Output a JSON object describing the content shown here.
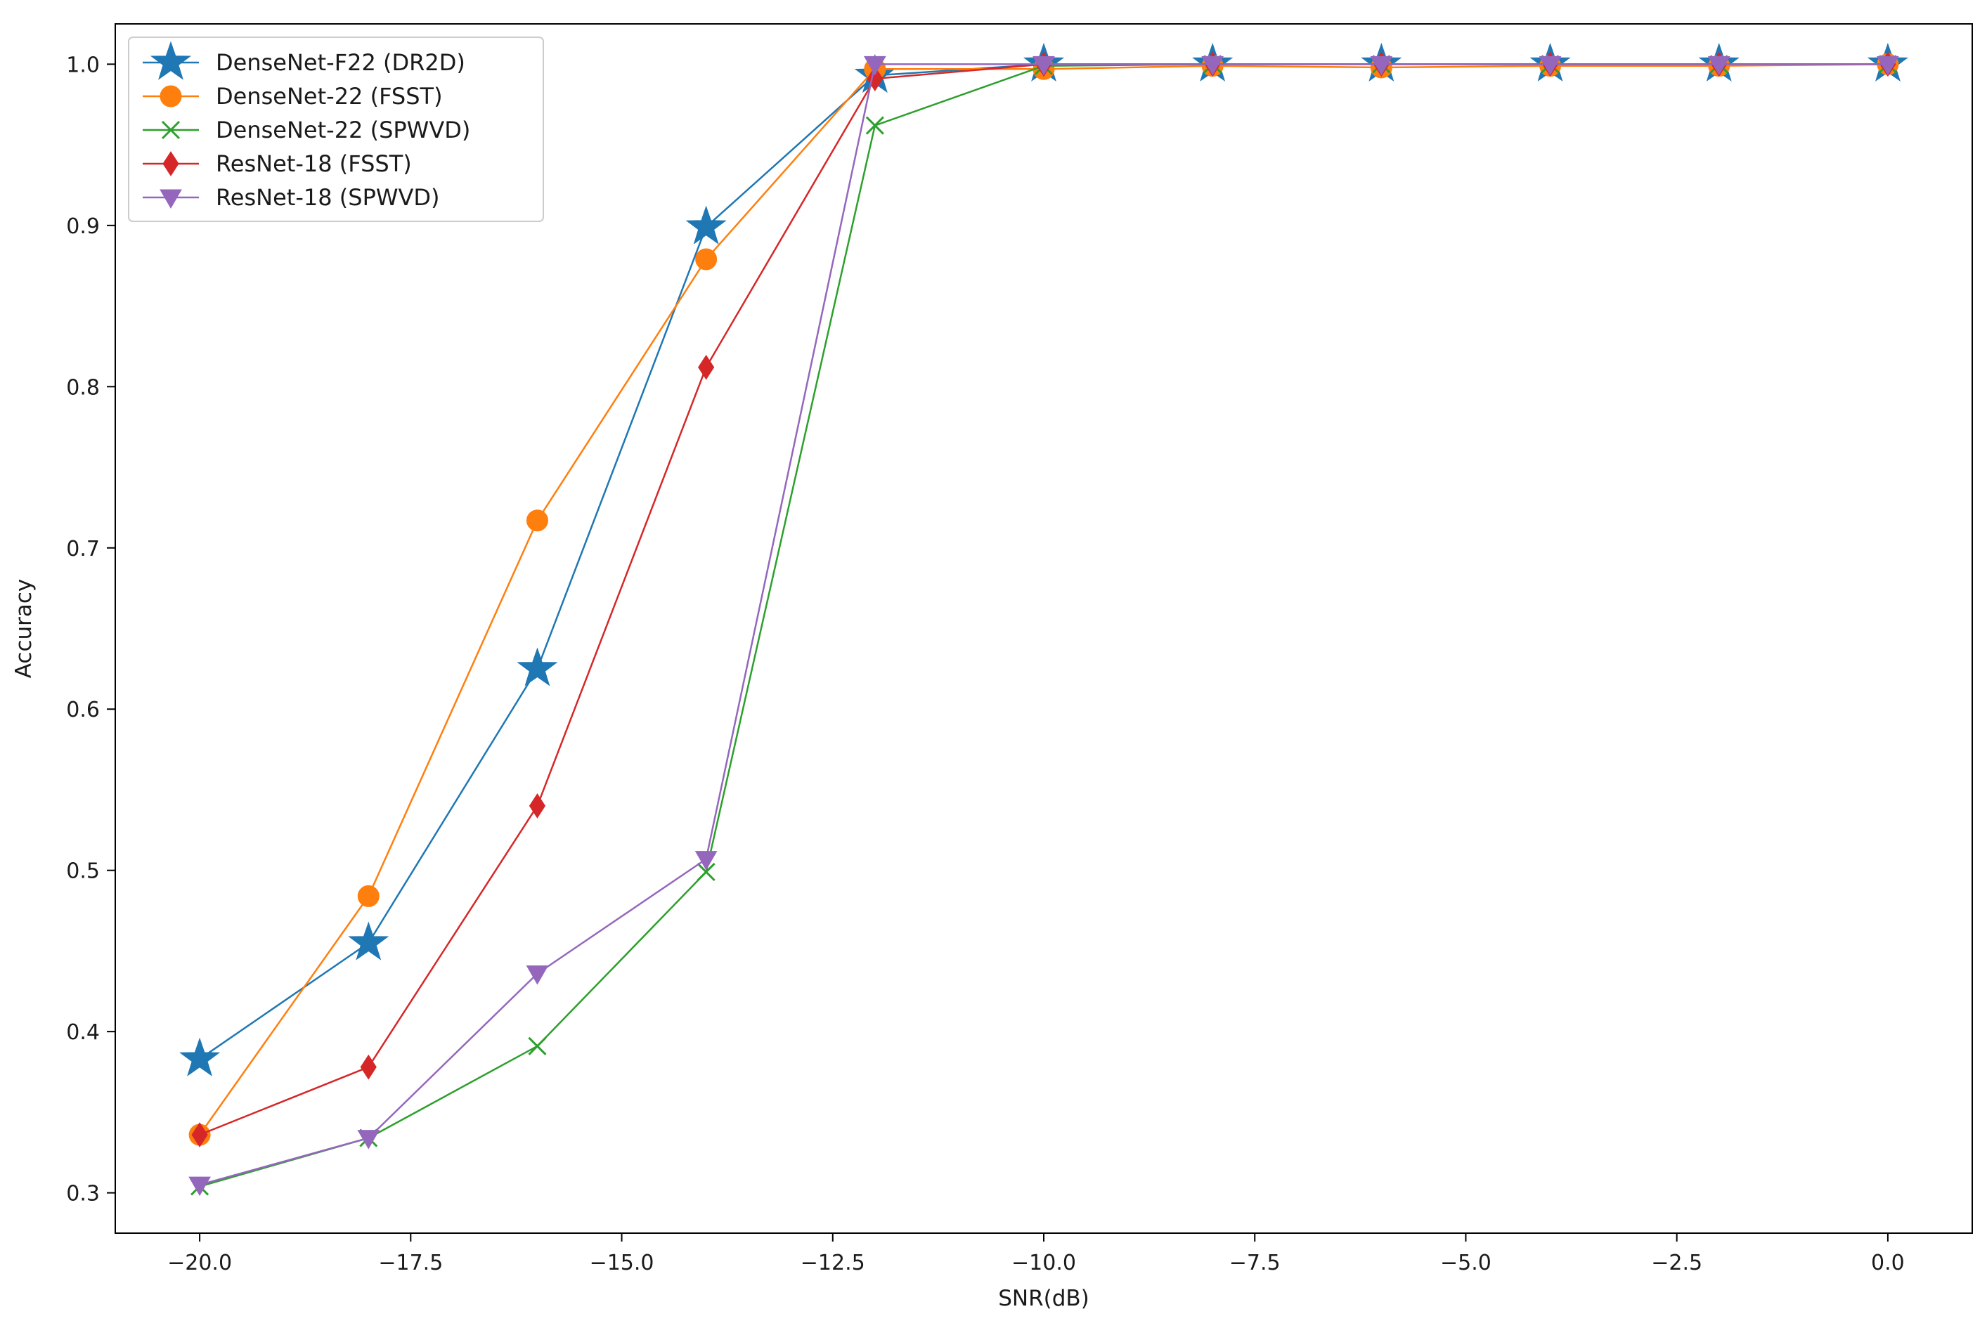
{
  "chart_data": {
    "type": "line",
    "title": "",
    "xlabel": "SNR(dB)",
    "ylabel": "Accuracy",
    "xlim": [
      -21.0,
      1.0
    ],
    "ylim": [
      0.275,
      1.025
    ],
    "xticks": [
      -20.0,
      -17.5,
      -15.0,
      -12.5,
      -10.0,
      -7.5,
      -5.0,
      -2.5,
      0.0
    ],
    "xtick_labels": [
      "−20.0",
      "−17.5",
      "−15.0",
      "−12.5",
      "−10.0",
      "−7.5",
      "−5.0",
      "−2.5",
      "0.0"
    ],
    "yticks": [
      0.3,
      0.4,
      0.5,
      0.6,
      0.7,
      0.8,
      0.9,
      1.0
    ],
    "ytick_labels": [
      "0.3",
      "0.4",
      "0.5",
      "0.6",
      "0.7",
      "0.8",
      "0.9",
      "1.0"
    ],
    "grid": false,
    "legend_position": "top-left",
    "x": [
      -20,
      -18,
      -16,
      -14,
      -12,
      -10,
      -8,
      -6,
      -4,
      -2,
      0
    ],
    "series": [
      {
        "name": "DenseNet-F22 (DR2D)",
        "color": "#1f77b4",
        "marker": "star",
        "values": [
          0.383,
          0.455,
          0.625,
          0.899,
          0.993,
          1.0,
          1.0,
          1.0,
          1.0,
          1.0,
          1.0
        ]
      },
      {
        "name": "DenseNet-22 (FSST)",
        "color": "#ff7f0e",
        "marker": "circle",
        "values": [
          0.336,
          0.484,
          0.717,
          0.879,
          0.997,
          0.997,
          0.999,
          0.998,
          0.999,
          0.999,
          1.0
        ]
      },
      {
        "name": "DenseNet-22 (SPWVD)",
        "color": "#2ca02c",
        "marker": "x",
        "values": [
          0.304,
          0.334,
          0.391,
          0.499,
          0.962,
          0.999,
          1.0,
          1.0,
          1.0,
          1.0,
          1.0
        ]
      },
      {
        "name": "ResNet-18 (FSST)",
        "color": "#d62728",
        "marker": "diamond",
        "values": [
          0.336,
          0.378,
          0.54,
          0.812,
          0.991,
          1.0,
          1.0,
          1.0,
          1.0,
          1.0,
          1.0
        ]
      },
      {
        "name": "ResNet-18 (SPWVD)",
        "color": "#9467bd",
        "marker": "triangle-down",
        "values": [
          0.305,
          0.334,
          0.436,
          0.507,
          1.0,
          1.0,
          1.0,
          1.0,
          1.0,
          1.0,
          1.0
        ]
      }
    ]
  }
}
